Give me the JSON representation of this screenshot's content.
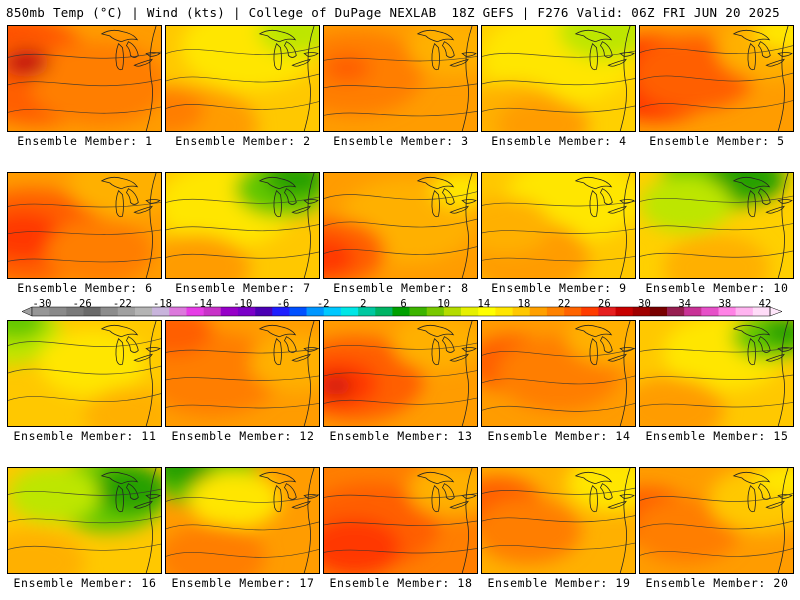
{
  "header": {
    "title_left": "850mb Temp (°C) | Wind (kts) | College of DuPage NEXLAB",
    "title_right": "18Z GEFS | F276 Valid: 06Z FRI JUN 20 2025"
  },
  "panels": [
    {
      "label": "Ensemble Member: 1",
      "base": "#ff9c00",
      "blobs": [
        [
          "#ff3800",
          0.1,
          0.35,
          0.45
        ],
        [
          "#ff5e00",
          0.2,
          0.5,
          0.5
        ],
        [
          "#ff7e00",
          0.6,
          0.55,
          0.45
        ],
        [
          "#c41010",
          0.12,
          0.35,
          0.15
        ]
      ]
    },
    {
      "label": "Ensemble Member: 2",
      "base": "#ffc800",
      "blobs": [
        [
          "#ffe600",
          0.55,
          0.2,
          0.45
        ],
        [
          "#bde600",
          0.85,
          0.05,
          0.25
        ],
        [
          "#ff9c00",
          0.2,
          0.95,
          0.4
        ],
        [
          "#ff7e00",
          0.0,
          0.8,
          0.25
        ]
      ]
    },
    {
      "label": "Ensemble Member: 3",
      "base": "#ff9c00",
      "blobs": [
        [
          "#ff7e00",
          0.2,
          0.45,
          0.45
        ],
        [
          "#ffb000",
          0.85,
          0.2,
          0.3
        ],
        [
          "#ff5e00",
          0.15,
          0.4,
          0.15
        ]
      ]
    },
    {
      "label": "Ensemble Member: 4",
      "base": "#ffd000",
      "blobs": [
        [
          "#ffe600",
          0.5,
          0.3,
          0.5
        ],
        [
          "#bde600",
          0.8,
          0.05,
          0.3
        ],
        [
          "#ffb000",
          0.2,
          0.85,
          0.35
        ],
        [
          "#ff9c00",
          0.4,
          0.95,
          0.3
        ]
      ]
    },
    {
      "label": "Ensemble Member: 5",
      "base": "#ff9c00",
      "blobs": [
        [
          "#ff3800",
          0.1,
          0.5,
          0.45
        ],
        [
          "#ff5e00",
          0.35,
          0.45,
          0.4
        ],
        [
          "#ffb000",
          0.85,
          0.2,
          0.35
        ],
        [
          "#ffe600",
          0.95,
          0.05,
          0.2
        ]
      ]
    },
    {
      "label": "Ensemble Member: 6",
      "base": "#ff9c00",
      "blobs": [
        [
          "#ff5e00",
          0.15,
          0.6,
          0.5
        ],
        [
          "#ff3800",
          0.1,
          0.6,
          0.25
        ],
        [
          "#ffb000",
          0.75,
          0.1,
          0.35
        ],
        [
          "#ff7e00",
          0.6,
          0.75,
          0.35
        ]
      ]
    },
    {
      "label": "Ensemble Member: 7",
      "base": "#ffc800",
      "blobs": [
        [
          "#ffe600",
          0.4,
          0.3,
          0.45
        ],
        [
          "#64c800",
          0.75,
          0.15,
          0.3
        ],
        [
          "#28a000",
          0.85,
          0.05,
          0.2
        ],
        [
          "#ff9c00",
          0.2,
          0.9,
          0.35
        ]
      ]
    },
    {
      "label": "Ensemble Member: 8",
      "base": "#ff9c00",
      "blobs": [
        [
          "#ffb000",
          0.55,
          0.45,
          0.45
        ],
        [
          "#ff5e00",
          0.05,
          0.75,
          0.35
        ],
        [
          "#ff3800",
          0.0,
          0.8,
          0.2
        ],
        [
          "#ffe600",
          0.9,
          0.15,
          0.2
        ]
      ]
    },
    {
      "label": "Ensemble Member: 9",
      "base": "#ffc800",
      "blobs": [
        [
          "#ffe600",
          0.6,
          0.25,
          0.45
        ],
        [
          "#ff9c00",
          0.3,
          0.8,
          0.4
        ],
        [
          "#ffb000",
          0.15,
          0.5,
          0.3
        ]
      ]
    },
    {
      "label": "Ensemble Member: 10",
      "base": "#ffd000",
      "blobs": [
        [
          "#64c800",
          0.5,
          0.05,
          0.35
        ],
        [
          "#28a000",
          0.7,
          0.05,
          0.25
        ],
        [
          "#bde600",
          0.3,
          0.3,
          0.3
        ],
        [
          "#ffb000",
          0.5,
          0.9,
          0.35
        ]
      ]
    },
    {
      "label": "Ensemble Member: 11",
      "base": "#ffc800",
      "blobs": [
        [
          "#bde600",
          0.0,
          0.1,
          0.35
        ],
        [
          "#64c800",
          0.05,
          0.0,
          0.2
        ],
        [
          "#ffe600",
          0.55,
          0.4,
          0.35
        ],
        [
          "#ffb000",
          0.8,
          0.9,
          0.3
        ]
      ]
    },
    {
      "label": "Ensemble Member: 12",
      "base": "#ff9c00",
      "blobs": [
        [
          "#ff7e00",
          0.3,
          0.5,
          0.45
        ],
        [
          "#ff5e00",
          0.05,
          0.1,
          0.25
        ],
        [
          "#ffb000",
          0.85,
          0.4,
          0.3
        ]
      ]
    },
    {
      "label": "Ensemble Member: 13",
      "base": "#ff9c00",
      "blobs": [
        [
          "#ff5e00",
          0.2,
          0.55,
          0.45
        ],
        [
          "#ff3800",
          0.1,
          0.6,
          0.25
        ],
        [
          "#c41010",
          0.08,
          0.62,
          0.1
        ],
        [
          "#ffb000",
          0.75,
          0.2,
          0.3
        ]
      ]
    },
    {
      "label": "Ensemble Member: 14",
      "base": "#ff9c00",
      "blobs": [
        [
          "#ff5e00",
          0.2,
          0.4,
          0.3
        ],
        [
          "#ff7e00",
          0.5,
          0.5,
          0.4
        ],
        [
          "#ffb000",
          0.85,
          0.15,
          0.3
        ]
      ]
    },
    {
      "label": "Ensemble Member: 15",
      "base": "#ffc800",
      "blobs": [
        [
          "#ffe600",
          0.55,
          0.3,
          0.4
        ],
        [
          "#64c800",
          0.85,
          0.15,
          0.25
        ],
        [
          "#28a000",
          0.95,
          0.1,
          0.15
        ],
        [
          "#ff9c00",
          0.2,
          0.85,
          0.35
        ]
      ]
    },
    {
      "label": "Ensemble Member: 16",
      "base": "#ffc800",
      "blobs": [
        [
          "#64c800",
          0.65,
          0.25,
          0.4
        ],
        [
          "#28a000",
          0.8,
          0.2,
          0.25
        ],
        [
          "#bde600",
          0.3,
          0.25,
          0.3
        ],
        [
          "#ffb000",
          0.15,
          0.9,
          0.35
        ]
      ]
    },
    {
      "label": "Ensemble Member: 17",
      "base": "#ff9c00",
      "blobs": [
        [
          "#64c800",
          0.25,
          0.05,
          0.35
        ],
        [
          "#28a000",
          0.1,
          0.0,
          0.2
        ],
        [
          "#ffe600",
          0.45,
          0.3,
          0.3
        ],
        [
          "#ff7e00",
          0.3,
          0.85,
          0.35
        ]
      ]
    },
    {
      "label": "Ensemble Member: 18",
      "base": "#ff7e00",
      "blobs": [
        [
          "#ff5e00",
          0.3,
          0.55,
          0.45
        ],
        [
          "#ff3800",
          0.2,
          0.75,
          0.3
        ],
        [
          "#ffb000",
          0.85,
          0.2,
          0.3
        ]
      ]
    },
    {
      "label": "Ensemble Member: 19",
      "base": "#ffb000",
      "blobs": [
        [
          "#ff5e00",
          0.1,
          0.35,
          0.3
        ],
        [
          "#ff7e00",
          0.3,
          0.6,
          0.35
        ],
        [
          "#ffe600",
          0.85,
          0.15,
          0.3
        ]
      ]
    },
    {
      "label": "Ensemble Member: 20",
      "base": "#ff9c00",
      "blobs": [
        [
          "#ff5e00",
          0.05,
          0.45,
          0.3
        ],
        [
          "#ff7e00",
          0.3,
          0.6,
          0.35
        ],
        [
          "#ffc800",
          0.8,
          0.3,
          0.35
        ],
        [
          "#ffe600",
          0.95,
          0.1,
          0.2
        ]
      ]
    }
  ],
  "colorbar": {
    "labels": [
      "-30",
      "-26",
      "-22",
      "-18",
      "-14",
      "-10",
      "-6",
      "-2",
      "2",
      "6",
      "10",
      "14",
      "18",
      "22",
      "26",
      "30",
      "34",
      "38",
      "42"
    ],
    "colors": [
      "#969696",
      "#8a8a8a",
      "#7a7a7a",
      "#6a6a6a",
      "#8c8c8c",
      "#a0a0a0",
      "#b4b4b4",
      "#c8b4dc",
      "#dc78dc",
      "#e63ce6",
      "#c832c8",
      "#9600c8",
      "#7a00c8",
      "#4b00b4",
      "#1e1eff",
      "#0050ff",
      "#0096ff",
      "#00c8ff",
      "#00e6e6",
      "#00c8a0",
      "#00b464",
      "#00a000",
      "#3cb400",
      "#78c800",
      "#b4dc00",
      "#e6f000",
      "#ffff00",
      "#ffe600",
      "#ffc800",
      "#ffa000",
      "#ff8200",
      "#ff6400",
      "#ff3c00",
      "#e61e1e",
      "#c80000",
      "#a00000",
      "#780000",
      "#961e50",
      "#c83296",
      "#e650c8",
      "#ff82e6",
      "#ffb4f0",
      "#ffdcf8"
    ]
  }
}
